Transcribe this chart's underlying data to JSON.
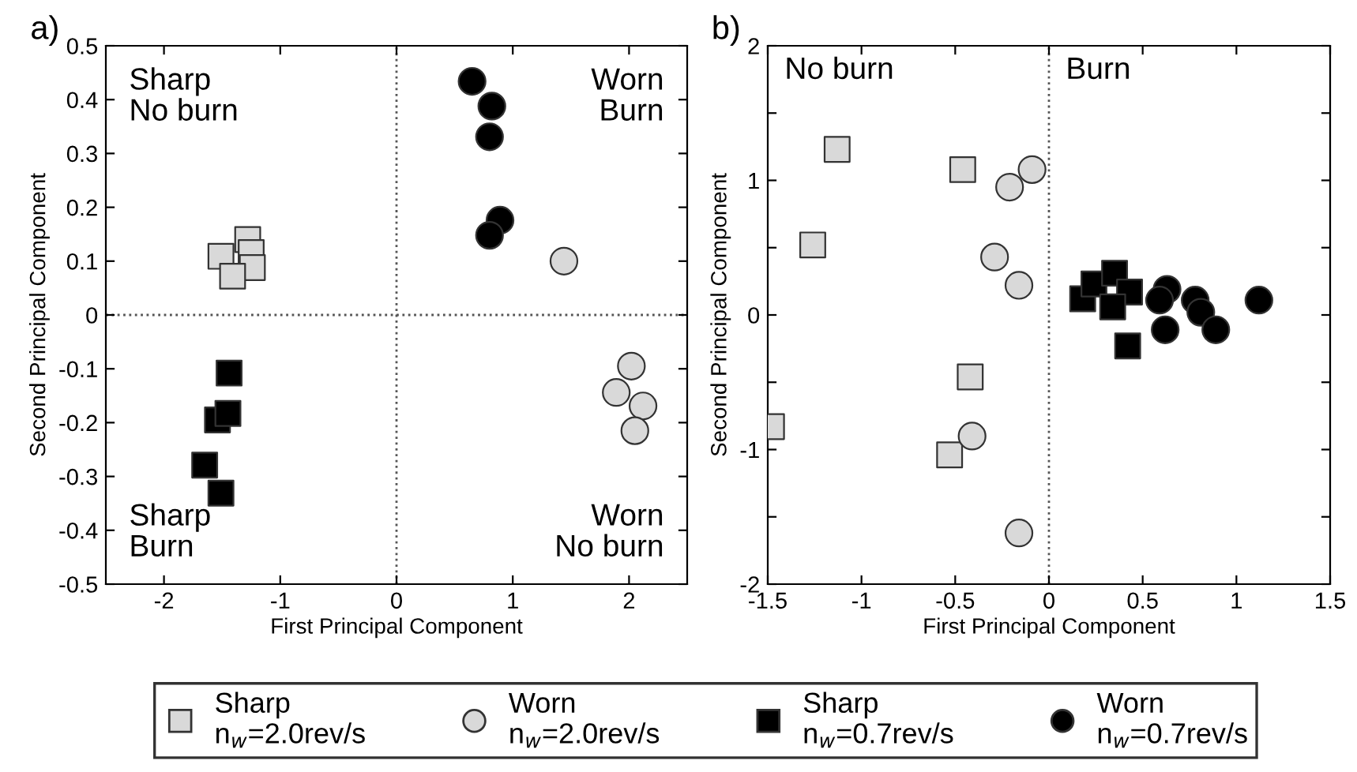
{
  "chart_data": [
    {
      "type": "scatter",
      "title": "a)",
      "xlabel": "First Principal Component",
      "ylabel": "Second Principal Component",
      "xlim": [
        -2.5,
        2.5
      ],
      "xticks": [
        -2,
        -1,
        0,
        1,
        2
      ],
      "ylim": [
        -0.5,
        0.5
      ],
      "yticks": [
        -0.5,
        -0.4,
        -0.3,
        -0.2,
        -0.1,
        0,
        0.1,
        0.2,
        0.3,
        0.4,
        0.5
      ],
      "grid": false,
      "legend": "bottom",
      "ref_lines": [
        {
          "axis": "x",
          "value": 0,
          "line_style": "dotted",
          "color": "#555555"
        },
        {
          "axis": "y",
          "value": 0,
          "line_style": "dotted",
          "color": "#555555"
        }
      ],
      "annotations": [
        "Sharp\nNo burn",
        "Worn\nBurn",
        "Sharp\nBurn",
        "Worn\nNo burn"
      ],
      "series": [
        {
          "name": "Sharp\nn$_{w}$=2.0rev/s",
          "marker": "square",
          "color": "#d9d9d9",
          "x": [
            -1.51,
            -1.28,
            -1.25,
            -1.24,
            -1.41
          ],
          "values": [
            0.109,
            0.14,
            0.116,
            0.088,
            0.072
          ]
        },
        {
          "name": "Worn\nn$_{w}$=2.0rev/s",
          "marker": "circle",
          "color": "#d9d9d9",
          "x": [
            1.44,
            2.02,
            1.89,
            2.12,
            2.05
          ],
          "values": [
            0.1,
            -0.095,
            -0.144,
            -0.169,
            -0.215
          ]
        },
        {
          "name": "Sharp\nn$_{w}$=0.7rev/s",
          "marker": "square",
          "color": "#000000",
          "x": [
            -1.44,
            -1.54,
            -1.45,
            -1.65,
            -1.51
          ],
          "values": [
            -0.108,
            -0.195,
            -0.183,
            -0.279,
            -0.331
          ]
        },
        {
          "name": "Worn\nn$_{w}$=0.7rev/s",
          "marker": "circle",
          "color": "#000000",
          "x": [
            0.65,
            0.82,
            0.8,
            0.89,
            0.8
          ],
          "values": [
            0.434,
            0.388,
            0.331,
            0.176,
            0.148
          ]
        }
      ]
    },
    {
      "type": "scatter",
      "title": "b)",
      "xlabel": "First Principal Component",
      "ylabel": "Second Principal Component",
      "xlim": [
        -1.5,
        1.5
      ],
      "xticks": [
        -1.5,
        -1,
        -0.5,
        0,
        0.5,
        1,
        1.5
      ],
      "ylim": [
        -2,
        2
      ],
      "yticks": [
        -2,
        {
          "value": -1.5,
          "label": null
        },
        -1,
        {
          "value": -0.5,
          "label": null
        },
        0,
        {
          "value": 0.5,
          "label": null
        },
        1,
        {
          "value": 1.5,
          "label": null
        },
        2
      ],
      "grid": false,
      "legend": "bottom",
      "ref_lines": [
        {
          "axis": "x",
          "value": 0,
          "line_style": "dotted",
          "color": "#555555"
        }
      ],
      "annotations": [
        "No burn",
        "Burn"
      ],
      "series": [
        {
          "name": "Sharp\nn$_{w}$=2.0rev/s",
          "marker": "square",
          "color": "#d9d9d9",
          "x": [
            -1.13,
            -1.26,
            -0.46,
            -0.42,
            -1.48,
            -0.53
          ],
          "values": [
            1.23,
            0.52,
            1.08,
            -0.46,
            -0.83,
            -1.04
          ]
        },
        {
          "name": "Worn\nn$_{w}$=2.0rev/s",
          "marker": "circle",
          "color": "#d9d9d9",
          "x": [
            -0.09,
            -0.21,
            -0.29,
            -0.16,
            -0.41,
            -0.16
          ],
          "values": [
            1.08,
            0.95,
            0.43,
            0.22,
            -0.9,
            -1.62
          ]
        },
        {
          "name": "Sharp\nn$_{w}$=0.7rev/s",
          "marker": "square",
          "color": "#000000",
          "x": [
            0.18,
            0.24,
            0.35,
            0.43,
            0.34,
            0.42
          ],
          "values": [
            0.12,
            0.23,
            0.31,
            0.17,
            0.06,
            -0.23
          ]
        },
        {
          "name": "Worn\nn$_{w}$=0.7rev/s",
          "marker": "circle",
          "color": "#000000",
          "x": [
            0.63,
            0.59,
            0.78,
            0.81,
            0.62,
            0.89,
            1.12
          ],
          "values": [
            0.19,
            0.11,
            0.11,
            0.02,
            -0.11,
            -0.11,
            0.11
          ]
        }
      ]
    }
  ]
}
